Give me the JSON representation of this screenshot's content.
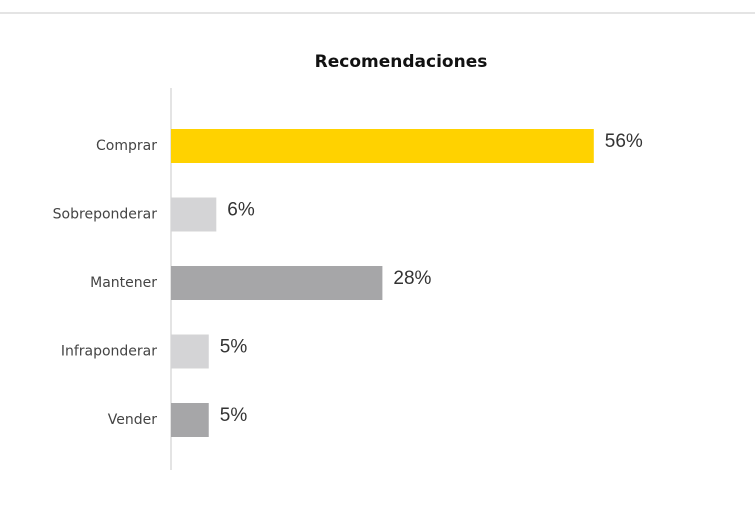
{
  "chart_data": {
    "type": "bar",
    "orientation": "horizontal",
    "title": "Recomendaciones",
    "categories": [
      "Comprar",
      "Sobreponderar",
      "Mantener",
      "Infraponderar",
      "Vender"
    ],
    "values": [
      56,
      6,
      28,
      5,
      5
    ],
    "value_labels": [
      "56%",
      "6%",
      "28%",
      "5%",
      "5%"
    ],
    "colors": [
      "#ffd200",
      "#d4d4d6",
      "#a6a6a8",
      "#d4d4d6",
      "#a6a6a8"
    ]
  }
}
